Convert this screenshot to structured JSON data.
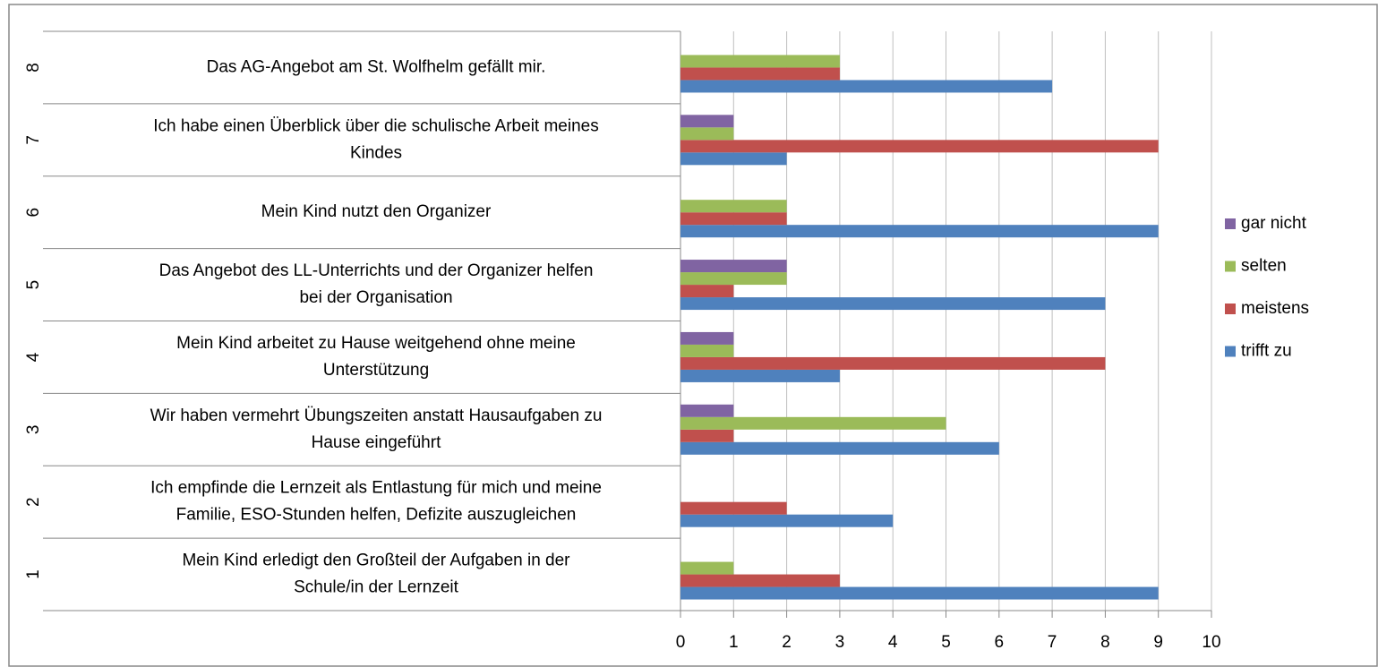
{
  "chart_data": {
    "type": "bar",
    "orientation": "horizontal",
    "groups": [
      "1",
      "2",
      "3",
      "4",
      "5",
      "6",
      "7",
      "8"
    ],
    "categories": [
      [
        "Mein Kind erledigt den Großteil der Aufgaben in der",
        "Schule/in der Lernzeit"
      ],
      [
        "Ich empfinde die Lernzeit als Entlastung für mich und meine",
        "Familie, ESO-Stunden helfen, Defizite auszugleichen"
      ],
      [
        "Wir haben vermehrt Übungszeiten anstatt Hausaufgaben zu",
        "Hause eingeführt"
      ],
      [
        "Mein Kind arbeitet zu Hause weitgehend ohne meine",
        "Unterstützung"
      ],
      [
        "Das Angebot des LL-Unterrichts und der Organizer helfen",
        "bei der Organisation"
      ],
      [
        "Mein Kind nutzt den Organizer"
      ],
      [
        "Ich habe einen Überblick über die schulische Arbeit meines",
        "Kindes"
      ],
      [
        "Das AG-Angebot am St. Wolfhelm gefällt mir."
      ]
    ],
    "series": [
      {
        "name": "trifft zu",
        "color": "#4f81bd",
        "values": [
          9,
          4,
          6,
          3,
          8,
          9,
          2,
          7
        ]
      },
      {
        "name": "meistens",
        "color": "#c0504d",
        "values": [
          3,
          2,
          1,
          8,
          1,
          2,
          9,
          3
        ]
      },
      {
        "name": "selten",
        "color": "#9bbb59",
        "values": [
          1,
          0,
          5,
          1,
          2,
          2,
          1,
          3
        ]
      },
      {
        "name": "gar nicht",
        "color": "#8064a2",
        "values": [
          0,
          0,
          1,
          1,
          2,
          0,
          1,
          0
        ]
      }
    ],
    "xlim": [
      0,
      10
    ],
    "xticks": [
      0,
      1,
      2,
      3,
      4,
      5,
      6,
      7,
      8,
      9,
      10
    ],
    "grid": true,
    "legend": "right"
  }
}
